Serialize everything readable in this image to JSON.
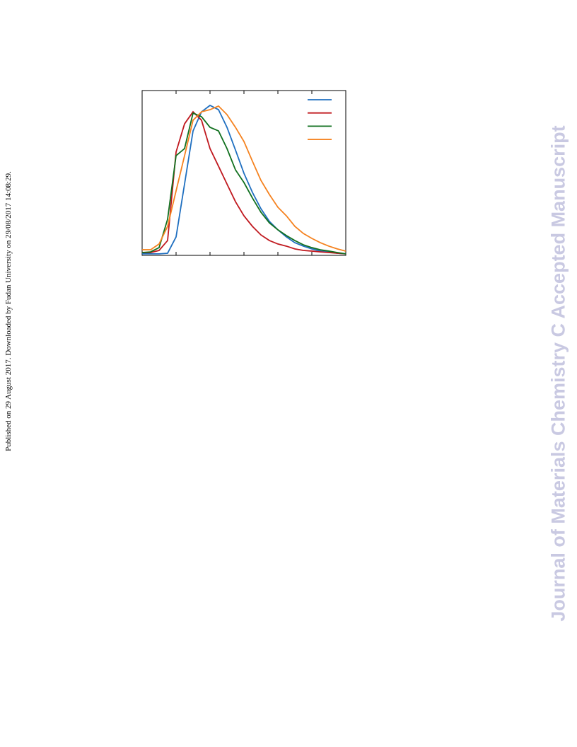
{
  "side_note": "Published on 29 August 2017. Downloaded by Fudan University on 29/08/2017 14:08:29.",
  "watermark": "Journal of Materials Chemistry C Accepted Manuscript",
  "chart_data": {
    "type": "line",
    "x": [
      0,
      0.25,
      0.5,
      0.75,
      1,
      1.25,
      1.5,
      1.75,
      2,
      2.25,
      2.5,
      2.75,
      3,
      3.25,
      3.5,
      3.75,
      4,
      4.25,
      4.5,
      4.75,
      5,
      5.25,
      5.5,
      5.75,
      6
    ],
    "xlim": [
      0,
      6
    ],
    "ylim": [
      0,
      1
    ],
    "xticks": [
      0,
      1,
      2,
      3,
      4,
      5,
      6
    ],
    "legend": "upper right",
    "series": [
      {
        "color": "#1f6fc0",
        "values": [
          0.009,
          0.009,
          0.009,
          0.013,
          0.112,
          0.433,
          0.755,
          0.871,
          0.91,
          0.884,
          0.777,
          0.639,
          0.498,
          0.382,
          0.283,
          0.206,
          0.155,
          0.112,
          0.077,
          0.056,
          0.039,
          0.026,
          0.021,
          0.013,
          0.009
        ]
      },
      {
        "color": "#c0191f",
        "values": [
          0.017,
          0.017,
          0.03,
          0.09,
          0.627,
          0.798,
          0.871,
          0.82,
          0.648,
          0.541,
          0.433,
          0.326,
          0.24,
          0.176,
          0.124,
          0.09,
          0.069,
          0.056,
          0.039,
          0.03,
          0.026,
          0.021,
          0.017,
          0.013,
          0.009
        ]
      },
      {
        "color": "#11701f",
        "values": [
          0.017,
          0.021,
          0.047,
          0.219,
          0.605,
          0.648,
          0.863,
          0.841,
          0.777,
          0.755,
          0.648,
          0.519,
          0.442,
          0.348,
          0.262,
          0.197,
          0.155,
          0.12,
          0.09,
          0.064,
          0.047,
          0.034,
          0.026,
          0.017,
          0.009
        ]
      },
      {
        "color": "#f5821f",
        "values": [
          0.034,
          0.034,
          0.069,
          0.176,
          0.391,
          0.605,
          0.82,
          0.871,
          0.884,
          0.906,
          0.854,
          0.777,
          0.691,
          0.571,
          0.455,
          0.369,
          0.292,
          0.24,
          0.176,
          0.133,
          0.103,
          0.077,
          0.056,
          0.039,
          0.026
        ]
      }
    ]
  }
}
